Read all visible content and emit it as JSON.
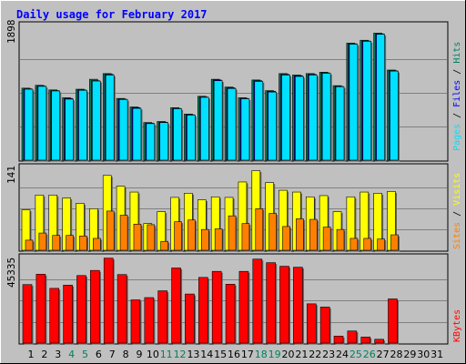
{
  "colors": {
    "background": "#C0C0C0",
    "plot_background": "#C0C0C0",
    "title": "#0000FF",
    "grid": "#808080",
    "hits": "#00805C",
    "files": "#0000FF",
    "pages": "#00E0FF",
    "visits": "#FFFF00",
    "sites": "#FF8000",
    "kbytes": "#FF0000",
    "weekend_label": "#00805C",
    "weekday_label": "#000000"
  },
  "chart_data": [
    {
      "type": "bar",
      "title": "Daily usage for February 2017",
      "ymax_label": "1898",
      "ylim": [
        0,
        1898
      ],
      "grid": true,
      "legend": "right",
      "categories": [
        "1",
        "2",
        "3",
        "4",
        "5",
        "6",
        "7",
        "8",
        "9",
        "10",
        "11",
        "12",
        "13",
        "14",
        "15",
        "16",
        "17",
        "18",
        "19",
        "20",
        "21",
        "22",
        "23",
        "24",
        "25",
        "26",
        "27",
        "28",
        "29",
        "30",
        "31"
      ],
      "weekend_days": [
        "4",
        "5",
        "11",
        "12",
        "18",
        "19",
        "25",
        "26"
      ],
      "series": [
        {
          "name": "Hits",
          "values": [
            1015,
            1055,
            990,
            880,
            1000,
            1140,
            1220,
            870,
            750,
            530,
            545,
            740,
            650,
            900,
            1140,
            1030,
            880,
            1130,
            980,
            1220,
            1200,
            1220,
            1240,
            1050,
            1650,
            1690,
            1790,
            1270,
            null,
            null,
            null
          ]
        },
        {
          "name": "Files",
          "values": [
            1005,
            1045,
            980,
            870,
            990,
            1120,
            1210,
            860,
            740,
            520,
            535,
            730,
            640,
            890,
            1130,
            1020,
            870,
            1120,
            970,
            1210,
            1190,
            1210,
            1230,
            1040,
            1640,
            1680,
            1780,
            1260,
            null,
            null,
            null
          ]
        },
        {
          "name": "Pages",
          "values": [
            1000,
            1040,
            975,
            860,
            985,
            1115,
            1200,
            855,
            730,
            515,
            530,
            725,
            635,
            885,
            1120,
            1010,
            865,
            1110,
            960,
            1200,
            1180,
            1200,
            1225,
            1035,
            1635,
            1675,
            1775,
            1255,
            null,
            null,
            null
          ]
        }
      ]
    },
    {
      "type": "bar",
      "ymax_label": "141",
      "ylim": [
        0,
        141
      ],
      "grid": true,
      "legend": "right",
      "categories": [
        "1",
        "2",
        "3",
        "4",
        "5",
        "6",
        "7",
        "8",
        "9",
        "10",
        "11",
        "12",
        "13",
        "14",
        "15",
        "16",
        "17",
        "18",
        "19",
        "20",
        "21",
        "22",
        "23",
        "24",
        "25",
        "26",
        "27",
        "28",
        "29",
        "30",
        "31"
      ],
      "series": [
        {
          "name": "Visits",
          "values": [
            68,
            93,
            93,
            88,
            79,
            70,
            126,
            108,
            98,
            45,
            65,
            89,
            96,
            85,
            90,
            89,
            115,
            134,
            114,
            101,
            98,
            90,
            92,
            65,
            90,
            98,
            96,
            99,
            null,
            null,
            null
          ]
        },
        {
          "name": "Sites",
          "values": [
            17,
            29,
            25,
            25,
            24,
            20,
            66,
            59,
            44,
            43,
            15,
            48,
            51,
            35,
            36,
            58,
            45,
            70,
            62,
            40,
            53,
            52,
            39,
            35,
            20,
            20,
            19,
            26,
            null,
            null,
            null
          ]
        }
      ]
    },
    {
      "type": "bar",
      "ymax_label": "45335",
      "ylim": [
        0,
        45335
      ],
      "grid": true,
      "legend": "right",
      "categories": [
        "1",
        "2",
        "3",
        "4",
        "5",
        "6",
        "7",
        "8",
        "9",
        "10",
        "11",
        "12",
        "13",
        "14",
        "15",
        "16",
        "17",
        "18",
        "19",
        "20",
        "21",
        "22",
        "23",
        "24",
        "25",
        "26",
        "27",
        "28",
        "29",
        "30",
        "31"
      ],
      "series": [
        {
          "name": "KBytes",
          "values": [
            31000,
            36500,
            29000,
            30700,
            35800,
            38500,
            45000,
            36300,
            22900,
            24100,
            27700,
            39800,
            26000,
            34800,
            38000,
            31200,
            38000,
            44500,
            42600,
            40700,
            40200,
            20800,
            19100,
            3700,
            6400,
            3200,
            2000,
            23400,
            null,
            null,
            null
          ]
        }
      ]
    }
  ]
}
